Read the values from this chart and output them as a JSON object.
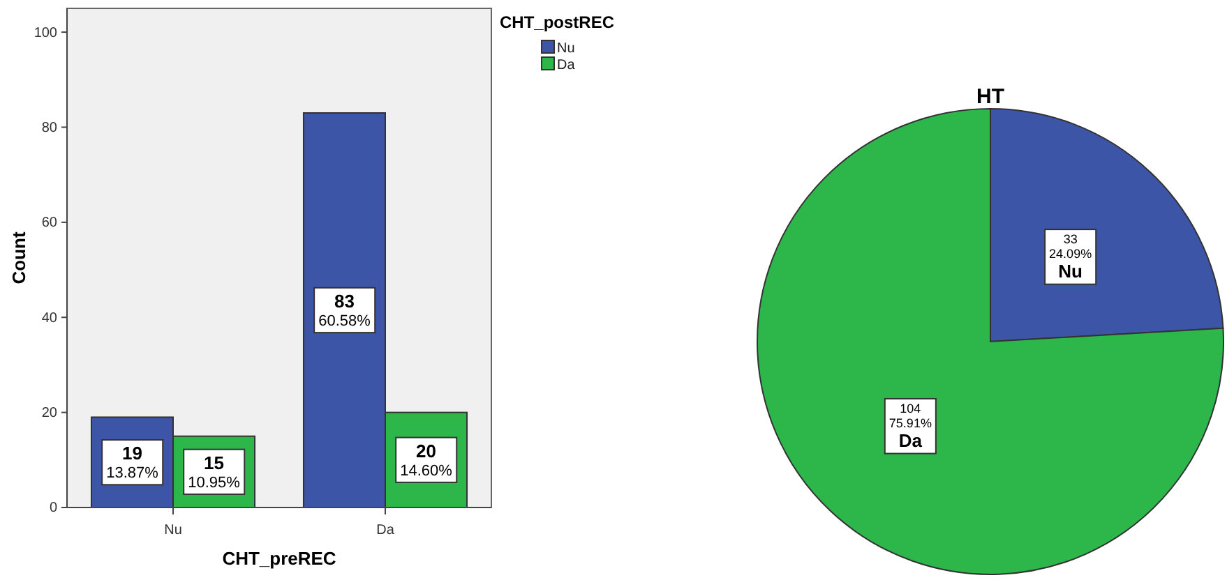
{
  "chart_data": [
    {
      "type": "bar",
      "xlabel": "CHT_preREC",
      "ylabel": "Count",
      "legend_title": "CHT_postREC",
      "legend": "top right",
      "categories": [
        "Nu",
        "Da"
      ],
      "series": [
        {
          "name": "Nu",
          "color": "#3d55a6",
          "values": [
            19,
            83
          ],
          "value_labels": [
            "19\n13.87%",
            "83\n60.58%"
          ]
        },
        {
          "name": "Da",
          "color": "#2db64a",
          "values": [
            15,
            20
          ],
          "value_labels": [
            "15\n10.95%",
            "20\n14.60%"
          ]
        }
      ],
      "ylim": [
        0,
        105
      ],
      "yticks": [
        0,
        20,
        40,
        60,
        80,
        100
      ]
    },
    {
      "type": "pie",
      "title": "HT",
      "categories": [
        "Nu",
        "Da"
      ],
      "values": [
        33,
        104
      ],
      "colors": [
        "#3d55a6",
        "#2db64a"
      ],
      "value_labels": [
        "33\n24.09%",
        "104\n75.91%"
      ]
    }
  ]
}
